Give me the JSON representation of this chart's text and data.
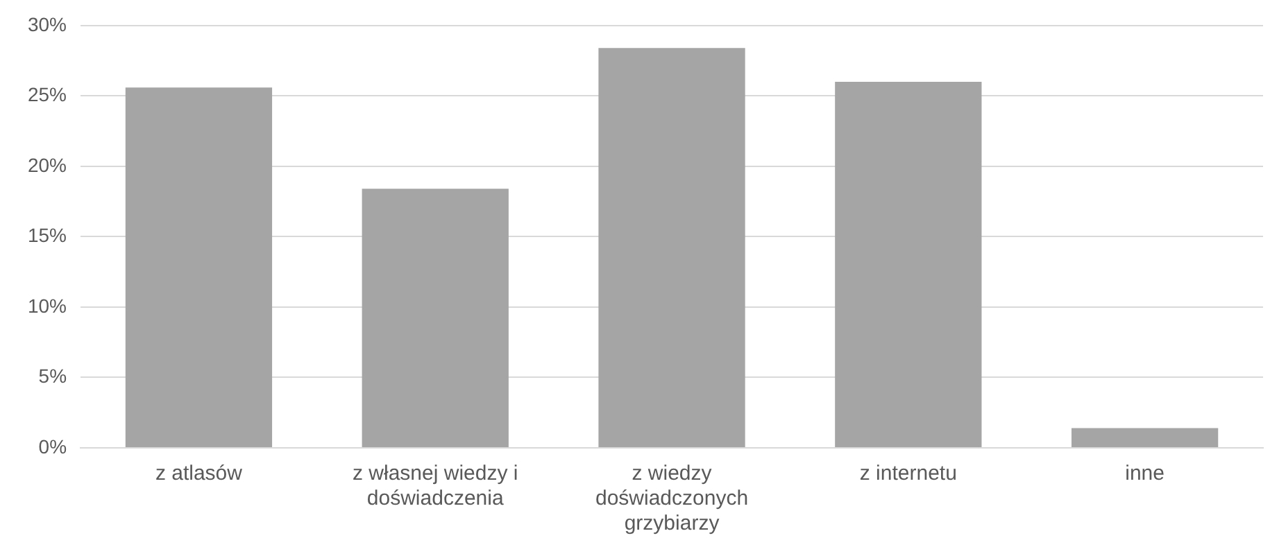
{
  "chart_data": {
    "type": "bar",
    "categories": [
      "z atlasów",
      "z własnej wiedzy i doświadczenia",
      "z wiedzy doświadczonych grzybiarzy",
      "z internetu",
      "inne"
    ],
    "values": [
      25.6,
      18.4,
      28.4,
      26.0,
      1.4
    ],
    "color": "#a5a5a5",
    "ylim": [
      0,
      30
    ],
    "yticks": [
      {
        "value": 0,
        "label": "0%"
      },
      {
        "value": 5,
        "label": "5%"
      },
      {
        "value": 10,
        "label": "10%"
      },
      {
        "value": 15,
        "label": "15%"
      },
      {
        "value": 20,
        "label": "20%"
      },
      {
        "value": 25,
        "label": "25%"
      },
      {
        "value": 30,
        "label": "30%"
      }
    ],
    "grid": "y",
    "legend": false
  }
}
